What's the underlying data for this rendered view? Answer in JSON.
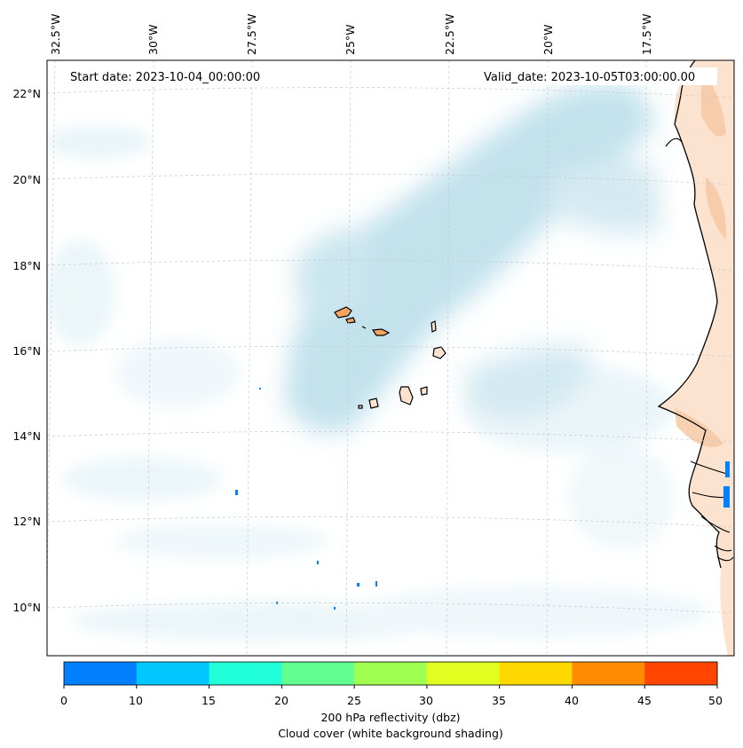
{
  "map": {
    "start_date_label": "Start date: 2023-10-04_00:00:00",
    "valid_date_label": "Valid_date: 2023-10-05T03:00:00.00",
    "longitude_labels": [
      "32.5°W",
      "30°W",
      "27.5°W",
      "25°W",
      "22.5°W",
      "20°W",
      "17.5°W"
    ],
    "latitude_labels": [
      "22°N",
      "20°N",
      "18°N",
      "16°N",
      "14°N",
      "12°N",
      "10°N"
    ],
    "land_color": "#f4a460",
    "cloud_color": "#9fd0e0"
  },
  "colorbar": {
    "ticks": [
      "0",
      "10",
      "15",
      "20",
      "25",
      "30",
      "35",
      "40",
      "45",
      "50"
    ],
    "colors": [
      "#0080ff",
      "#00c8ff",
      "#20ffd8",
      "#60ff90",
      "#a0ff50",
      "#e0ff20",
      "#ffd800",
      "#ff8c00",
      "#ff4500"
    ],
    "label_line1": "200 hPa reflectivity (dbz)",
    "label_line2": "Cloud cover (white background shading)"
  }
}
